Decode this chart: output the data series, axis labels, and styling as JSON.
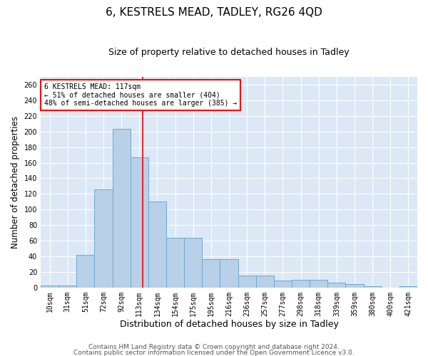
{
  "title1": "6, KESTRELS MEAD, TADLEY, RG26 4QD",
  "title2": "Size of property relative to detached houses in Tadley",
  "xlabel": "Distribution of detached houses by size in Tadley",
  "ylabel": "Number of detached properties",
  "categories": [
    "10sqm",
    "31sqm",
    "51sqm",
    "72sqm",
    "92sqm",
    "113sqm",
    "134sqm",
    "154sqm",
    "175sqm",
    "195sqm",
    "216sqm",
    "236sqm",
    "257sqm",
    "277sqm",
    "298sqm",
    "318sqm",
    "339sqm",
    "359sqm",
    "380sqm",
    "400sqm",
    "421sqm"
  ],
  "values": [
    3,
    3,
    42,
    126,
    203,
    167,
    110,
    64,
    64,
    36,
    36,
    15,
    15,
    9,
    10,
    10,
    6,
    4,
    2,
    0,
    2
  ],
  "bar_color": "#b8d0e8",
  "bar_edge_color": "#6aaad4",
  "vline_color": "red",
  "annotation_title": "6 KESTRELS MEAD: 117sqm",
  "annotation_line2": "← 51% of detached houses are smaller (404)",
  "annotation_line3": "48% of semi-detached houses are larger (385) →",
  "ylim": [
    0,
    270
  ],
  "yticks": [
    0,
    20,
    40,
    60,
    80,
    100,
    120,
    140,
    160,
    180,
    200,
    220,
    240,
    260
  ],
  "bg_color": "#dce8f5",
  "footer1": "Contains HM Land Registry data © Crown copyright and database right 2024.",
  "footer2": "Contains public sector information licensed under the Open Government Licence v3.0.",
  "title1_fontsize": 11,
  "title2_fontsize": 9,
  "xlabel_fontsize": 9,
  "ylabel_fontsize": 8.5,
  "tick_fontsize": 7,
  "footer_fontsize": 6.5,
  "annotation_fontsize": 7
}
